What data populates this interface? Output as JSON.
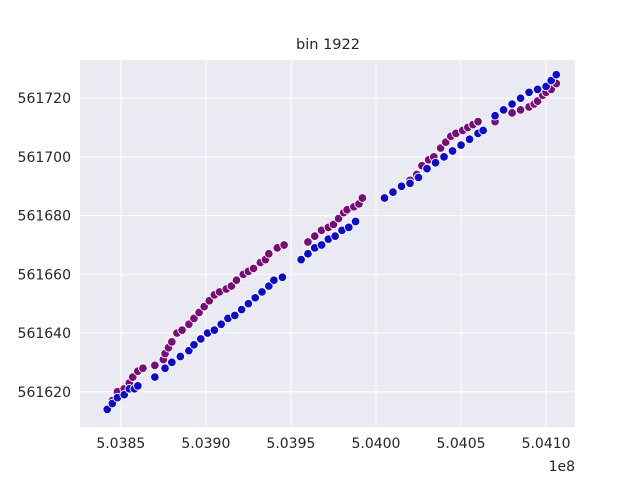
{
  "chart_data": {
    "type": "scatter",
    "title": "bin 1922",
    "xlabel": "",
    "ylabel": "",
    "x_offset_label": "1e8",
    "xlim": [
      5.03826,
      5.04117
    ],
    "ylim": [
      561608,
      561733
    ],
    "x_ticks": [
      5.0385,
      5.039,
      5.0395,
      5.04,
      5.0405,
      5.041
    ],
    "x_tick_labels": [
      "5.0385",
      "5.0390",
      "5.0395",
      "5.0400",
      "5.0405",
      "5.0410"
    ],
    "y_ticks": [
      561620,
      561640,
      561660,
      561680,
      561700,
      561720
    ],
    "y_tick_labels": [
      "561620",
      "561640",
      "561660",
      "561680",
      "561700",
      "561720"
    ],
    "grid": true,
    "background": "#eaeaf2",
    "series": [
      {
        "color": "#7a0c7a",
        "points": [
          [
            5.03845,
            561617
          ],
          [
            5.03848,
            561620
          ],
          [
            5.03852,
            561621
          ],
          [
            5.03855,
            561623
          ],
          [
            5.03857,
            561625
          ],
          [
            5.0386,
            561627
          ],
          [
            5.03863,
            561628
          ],
          [
            5.0387,
            561629
          ],
          [
            5.03875,
            561631
          ],
          [
            5.03876,
            561633
          ],
          [
            5.03878,
            561635
          ],
          [
            5.0388,
            561637
          ],
          [
            5.03883,
            561640
          ],
          [
            5.03886,
            561641
          ],
          [
            5.0389,
            561643
          ],
          [
            5.03893,
            561645
          ],
          [
            5.03896,
            561647
          ],
          [
            5.03899,
            561649
          ],
          [
            5.03902,
            561651
          ],
          [
            5.03905,
            561653
          ],
          [
            5.03908,
            561654
          ],
          [
            5.03912,
            561655
          ],
          [
            5.03915,
            561656
          ],
          [
            5.03918,
            561658
          ],
          [
            5.03922,
            561660
          ],
          [
            5.03925,
            561661
          ],
          [
            5.03928,
            561662
          ],
          [
            5.03932,
            561664
          ],
          [
            5.03935,
            561665
          ],
          [
            5.03937,
            561667
          ],
          [
            5.03942,
            561669
          ],
          [
            5.03946,
            561670
          ],
          [
            5.0396,
            561671
          ],
          [
            5.03964,
            561673
          ],
          [
            5.03968,
            561675
          ],
          [
            5.03972,
            561676
          ],
          [
            5.03975,
            561677
          ],
          [
            5.03978,
            561679
          ],
          [
            5.03981,
            561681
          ],
          [
            5.03983,
            561682
          ],
          [
            5.03987,
            561683
          ],
          [
            5.0399,
            561684
          ],
          [
            5.03992,
            561686
          ],
          [
            5.0402,
            561692
          ],
          [
            5.04024,
            561694
          ],
          [
            5.04027,
            561697
          ],
          [
            5.04031,
            561699
          ],
          [
            5.04034,
            561700
          ],
          [
            5.04038,
            561703
          ],
          [
            5.04041,
            561705
          ],
          [
            5.04044,
            561707
          ],
          [
            5.04047,
            561708
          ],
          [
            5.04051,
            561709
          ],
          [
            5.04054,
            561710
          ],
          [
            5.04057,
            561711
          ],
          [
            5.0406,
            561712
          ],
          [
            5.0407,
            561712
          ],
          [
            5.0408,
            561715
          ],
          [
            5.04085,
            561716
          ],
          [
            5.0409,
            561717
          ],
          [
            5.04093,
            561718
          ],
          [
            5.04095,
            561719
          ],
          [
            5.04098,
            561721
          ],
          [
            5.041,
            561722
          ],
          [
            5.04103,
            561723
          ],
          [
            5.04106,
            561725
          ]
        ]
      },
      {
        "color": "#0a0ad6",
        "points": [
          [
            5.03842,
            561614
          ],
          [
            5.03845,
            561616
          ],
          [
            5.03848,
            561618
          ],
          [
            5.03852,
            561619
          ],
          [
            5.03855,
            561621
          ],
          [
            5.03858,
            561621
          ],
          [
            5.0386,
            561622
          ],
          [
            5.0387,
            561625
          ],
          [
            5.03876,
            561628
          ],
          [
            5.0388,
            561630
          ],
          [
            5.03885,
            561632
          ],
          [
            5.0389,
            561634
          ],
          [
            5.03893,
            561636
          ],
          [
            5.03897,
            561638
          ],
          [
            5.03901,
            561640
          ],
          [
            5.03905,
            561641
          ],
          [
            5.03909,
            561643
          ],
          [
            5.03913,
            561645
          ],
          [
            5.03917,
            561646
          ],
          [
            5.03921,
            561648
          ],
          [
            5.03925,
            561650
          ],
          [
            5.03929,
            561652
          ],
          [
            5.03933,
            561654
          ],
          [
            5.03937,
            561656
          ],
          [
            5.0394,
            561658
          ],
          [
            5.03945,
            561659
          ],
          [
            5.03956,
            561665
          ],
          [
            5.0396,
            561667
          ],
          [
            5.03964,
            561669
          ],
          [
            5.03968,
            561670
          ],
          [
            5.03972,
            561672
          ],
          [
            5.03976,
            561673
          ],
          [
            5.0398,
            561675
          ],
          [
            5.03984,
            561676
          ],
          [
            5.03988,
            561678
          ],
          [
            5.04005,
            561686
          ],
          [
            5.0401,
            561688
          ],
          [
            5.04015,
            561690
          ],
          [
            5.0402,
            561691
          ],
          [
            5.04025,
            561693
          ],
          [
            5.0403,
            561696
          ],
          [
            5.04035,
            561698
          ],
          [
            5.0404,
            561700
          ],
          [
            5.04045,
            561702
          ],
          [
            5.0405,
            561704
          ],
          [
            5.04055,
            561706
          ],
          [
            5.0406,
            561708
          ],
          [
            5.04063,
            561709
          ],
          [
            5.0407,
            561714
          ],
          [
            5.04075,
            561716
          ],
          [
            5.0408,
            561718
          ],
          [
            5.04085,
            561720
          ],
          [
            5.0409,
            561722
          ],
          [
            5.04095,
            561723
          ],
          [
            5.041,
            561724
          ],
          [
            5.04103,
            561726
          ],
          [
            5.04106,
            561728
          ]
        ]
      }
    ]
  }
}
